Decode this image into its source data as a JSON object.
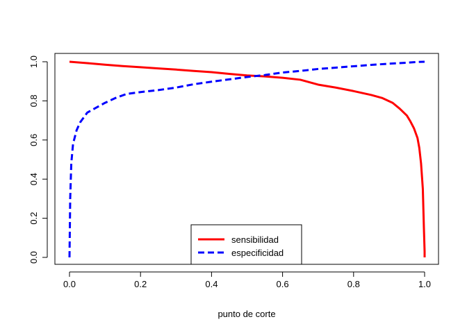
{
  "chart_data": {
    "type": "line",
    "title": "",
    "xlabel": "punto de corte",
    "ylabel": "",
    "xlim": [
      0,
      1
    ],
    "ylim": [
      0,
      1
    ],
    "x_ticks": [
      "0.0",
      "0.2",
      "0.4",
      "0.6",
      "0.8",
      "1.0"
    ],
    "y_ticks": [
      "0.0",
      "0.2",
      "0.4",
      "0.6",
      "0.8",
      "1.0"
    ],
    "grid": false,
    "legend_position": "bottom-center",
    "series": [
      {
        "name": "sensibilidad",
        "color": "#ff0000",
        "line_style": "solid",
        "x": [
          0.0,
          0.05,
          0.1,
          0.15,
          0.2,
          0.25,
          0.3,
          0.35,
          0.4,
          0.45,
          0.5,
          0.55,
          0.6,
          0.65,
          0.7,
          0.75,
          0.8,
          0.85,
          0.88,
          0.91,
          0.93,
          0.95,
          0.96,
          0.97,
          0.98,
          0.985,
          0.99,
          0.995,
          0.998,
          1.0,
          1.0
        ],
        "y": [
          1.0,
          0.993,
          0.985,
          0.978,
          0.972,
          0.966,
          0.96,
          0.953,
          0.947,
          0.938,
          0.93,
          0.925,
          0.918,
          0.908,
          0.883,
          0.868,
          0.85,
          0.83,
          0.815,
          0.79,
          0.76,
          0.725,
          0.695,
          0.66,
          0.61,
          0.56,
          0.48,
          0.35,
          0.15,
          0.03,
          0.0
        ]
      },
      {
        "name": "especificidad",
        "color": "#0000ff",
        "line_style": "dashed",
        "x": [
          0.0,
          0.002,
          0.005,
          0.01,
          0.02,
          0.03,
          0.05,
          0.08,
          0.1,
          0.13,
          0.16,
          0.2,
          0.25,
          0.3,
          0.35,
          0.4,
          0.45,
          0.5,
          0.55,
          0.6,
          0.65,
          0.7,
          0.75,
          0.8,
          0.85,
          0.9,
          0.95,
          0.98,
          1.0
        ],
        "y": [
          0.0,
          0.3,
          0.48,
          0.58,
          0.65,
          0.69,
          0.74,
          0.77,
          0.79,
          0.815,
          0.835,
          0.845,
          0.855,
          0.868,
          0.885,
          0.898,
          0.91,
          0.922,
          0.932,
          0.945,
          0.953,
          0.963,
          0.97,
          0.977,
          0.984,
          0.99,
          0.995,
          0.999,
          1.0
        ]
      }
    ]
  }
}
